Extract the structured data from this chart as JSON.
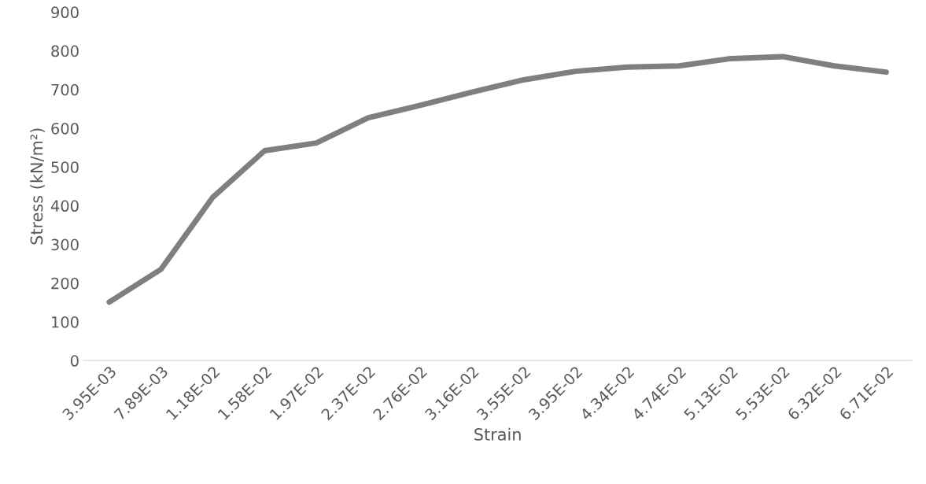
{
  "chart_data": {
    "type": "line",
    "xlabel": "Strain",
    "ylabel": "Stress (kN/m²)",
    "categories": [
      "3.95E-03",
      "7.89E-03",
      "1.18E-02",
      "1.58E-02",
      "1.97E-02",
      "2.37E-02",
      "2.76E-02",
      "3.16E-02",
      "3.55E-02",
      "3.95E-02",
      "4.34E-02",
      "4.74E-02",
      "5.13E-02",
      "5.53E-02",
      "6.32E-02",
      "6.71E-02"
    ],
    "series": [
      {
        "color": "#7f7f7f",
        "values": [
          151,
          236,
          422,
          542,
          562,
          627,
          659,
          693,
          725,
          747,
          758,
          761,
          780,
          785,
          761,
          745
        ]
      }
    ],
    "ylim": [
      0,
      900
    ],
    "yticks": [
      0,
      100,
      200,
      300,
      400,
      500,
      600,
      700,
      800,
      900
    ],
    "grid": false,
    "legend": false,
    "marker": "none",
    "line_style": "solid"
  }
}
